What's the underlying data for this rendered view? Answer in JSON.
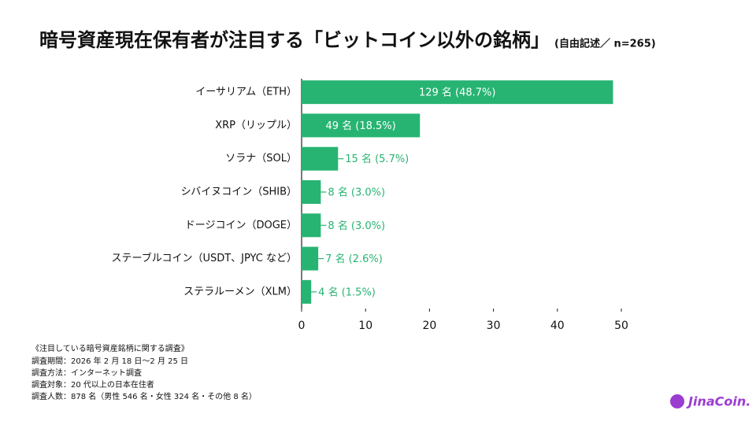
{
  "chart_data": {
    "type": "bar",
    "orientation": "horizontal",
    "title": "暗号資産現在保有者が注目する「ビットコイン以外の銘柄」",
    "subtitle": "(自由記述／ n=265)",
    "categories": [
      "イーサリアム（ETH）",
      "XRP（リップル）",
      "ソラナ（SOL）",
      "シバイヌコイン（SHIB）",
      "ドージコイン（DOGE）",
      "ステーブルコイン（USDT、JPYC など）",
      "ステラルーメン（XLM）"
    ],
    "values": [
      48.7,
      18.5,
      5.7,
      3.0,
      3.0,
      2.6,
      1.5
    ],
    "value_labels": [
      "129 名 (48.7%)",
      "49 名 (18.5%)",
      "15 名 (5.7%)",
      "8 名 (3.0%)",
      "8 名 (3.0%)",
      "7 名 (2.6%)",
      "4 名 (1.5%)"
    ],
    "color": "#27b472",
    "xlim": [
      0,
      50
    ],
    "xticks": [
      0,
      10,
      20,
      30,
      40,
      50
    ],
    "grid": false
  },
  "footnote": {
    "heading": "《注目している暗号資産銘柄に関する調査》",
    "lines": [
      "調査期間：2026 年 2 月 18 日〜2 月 25 日",
      "調査方法：インターネット調査",
      "調査対象：20 代以上の日本在住者",
      "調査人数：878 名（男性 546 名・女性 324 名・その他 8 名）"
    ]
  },
  "brand": "JinaCoin."
}
